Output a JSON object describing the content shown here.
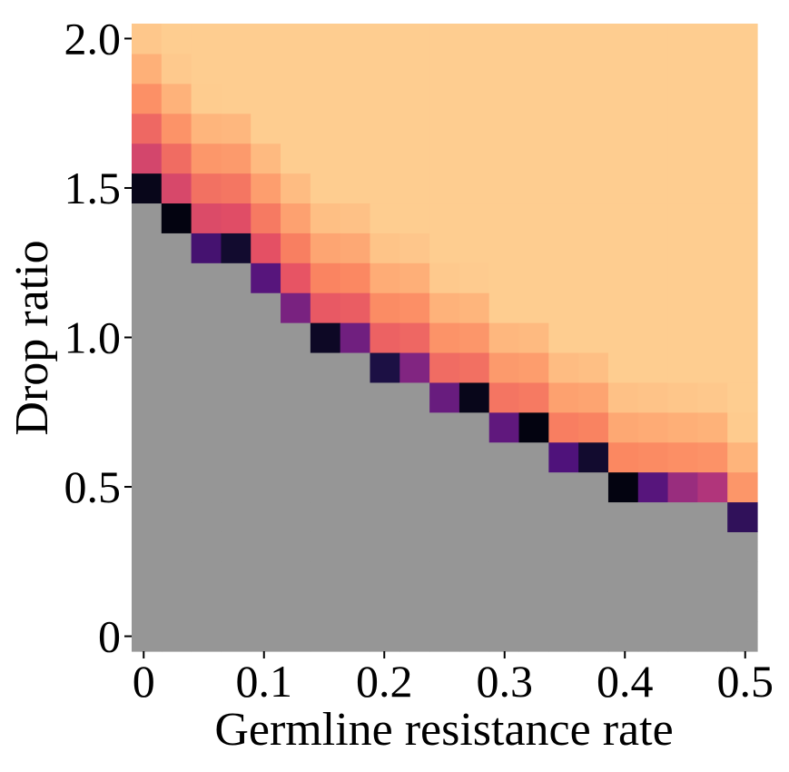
{
  "chart_data": {
    "type": "heatmap",
    "xlabel": "Germline resistance rate",
    "ylabel": "Drop ratio",
    "xlim": [
      -0.01,
      0.51
    ],
    "ylim": [
      -0.05,
      2.05
    ],
    "x_ticks": [
      {
        "value": 0,
        "label": "0"
      },
      {
        "value": 0.1,
        "label": "0.1"
      },
      {
        "value": 0.2,
        "label": "0.2"
      },
      {
        "value": 0.3,
        "label": "0.3"
      },
      {
        "value": 0.4,
        "label": "0.4"
      },
      {
        "value": 0.5,
        "label": "0.5"
      }
    ],
    "y_ticks": [
      {
        "value": 0,
        "label": "0"
      },
      {
        "value": 0.5,
        "label": "0.5"
      },
      {
        "value": 1.0,
        "label": "1.0"
      },
      {
        "value": 1.5,
        "label": "1.5"
      },
      {
        "value": 2.0,
        "label": "2.0"
      }
    ],
    "x_values": [
      0,
      0.025,
      0.05,
      0.075,
      0.1,
      0.125,
      0.15,
      0.175,
      0.2,
      0.225,
      0.25,
      0.275,
      0.3,
      0.325,
      0.35,
      0.375,
      0.4,
      0.425,
      0.45,
      0.475,
      0.5
    ],
    "y_values": [
      0,
      0.1,
      0.2,
      0.3,
      0.4,
      0.5,
      0.6,
      0.7,
      0.8,
      0.9,
      1.0,
      1.1,
      1.2,
      1.3,
      1.4,
      1.5,
      1.6,
      1.7,
      1.8,
      1.9,
      2.0
    ],
    "colormap": "magma",
    "no_data_color": "#969696",
    "grid": false,
    "legend": "none"
  }
}
